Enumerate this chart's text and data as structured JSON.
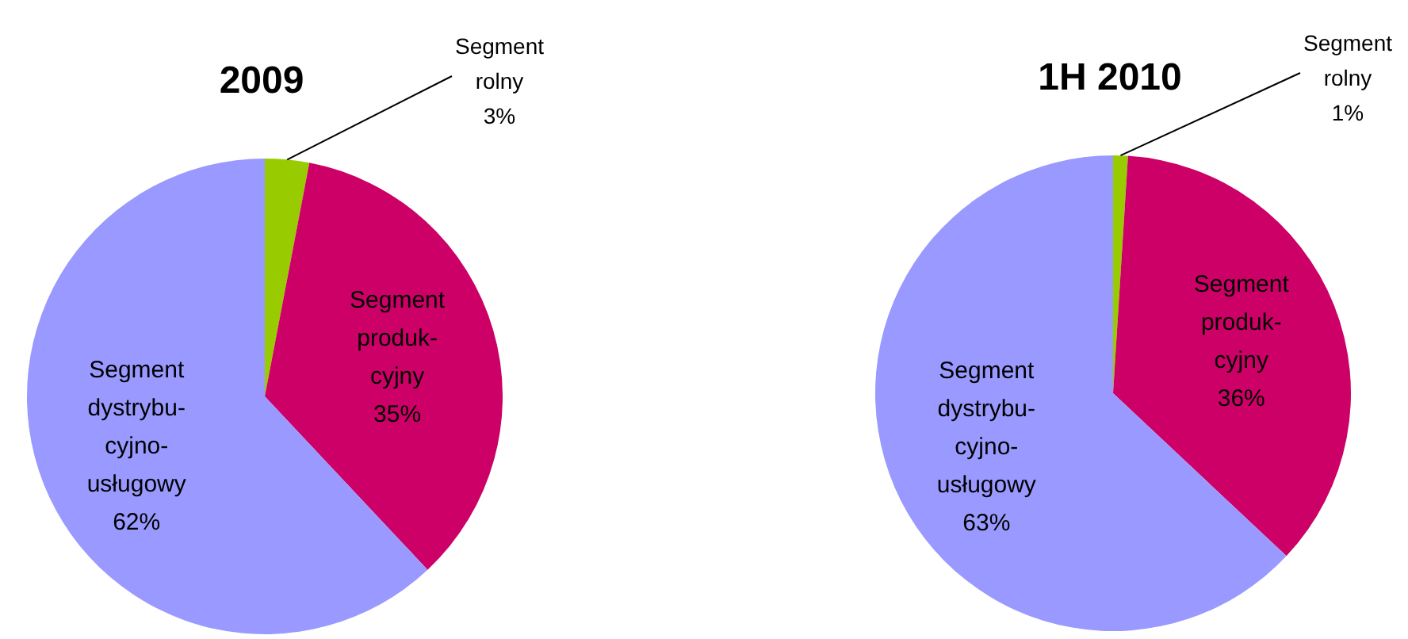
{
  "chart_data": [
    {
      "type": "pie",
      "title": "2009",
      "categories": [
        "Segment rolny",
        "Segment produk-cyjny",
        "Segment dystrybu-cyjno-usługowy"
      ],
      "values": [
        3,
        35,
        62
      ],
      "colors": [
        "#99cc00",
        "#cc0066",
        "#9999ff"
      ],
      "value_labels": [
        "3%",
        "35%",
        "62%"
      ],
      "legend": false
    },
    {
      "type": "pie",
      "title": "1H 2010",
      "categories": [
        "Segment rolny",
        "Segment produk-cyjny",
        "Segment dystrybu-cyjno-usługowy"
      ],
      "values": [
        1,
        36,
        63
      ],
      "colors": [
        "#99cc00",
        "#cc0066",
        "#9999ff"
      ],
      "value_labels": [
        "1%",
        "36%",
        "63%"
      ],
      "legend": false
    }
  ]
}
